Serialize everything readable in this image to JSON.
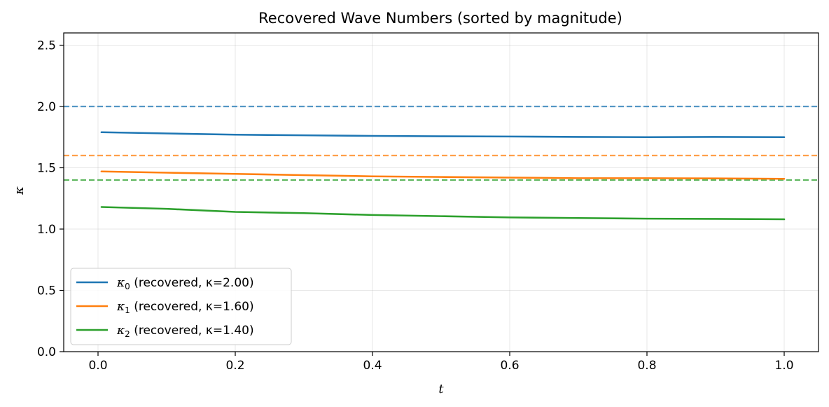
{
  "chart_data": {
    "type": "line",
    "title": "Recovered Wave Numbers (sorted by magnitude)",
    "xlabel": "t",
    "ylabel": "κ",
    "xlim": [
      -0.05,
      1.05
    ],
    "ylim": [
      0.0,
      2.6
    ],
    "xticks": [
      0.0,
      0.2,
      0.4,
      0.6,
      0.8,
      1.0
    ],
    "xtick_labels": [
      "0.0",
      "0.2",
      "0.4",
      "0.6",
      "0.8",
      "1.0"
    ],
    "yticks": [
      0.0,
      0.5,
      1.0,
      1.5,
      2.0,
      2.5
    ],
    "ytick_labels": [
      "0.0",
      "0.5",
      "1.0",
      "1.5",
      "2.0",
      "2.5"
    ],
    "grid": true,
    "legend_position": "lower-left",
    "x": [
      0.005,
      0.1,
      0.2,
      0.3,
      0.4,
      0.5,
      0.6,
      0.7,
      0.8,
      0.9,
      1.0
    ],
    "series": [
      {
        "name_symbol": "κ",
        "name_sub": "0",
        "name_rest": " (recovered, κ=2.00)",
        "color": "#1f77b4",
        "values": [
          1.79,
          1.78,
          1.77,
          1.765,
          1.76,
          1.757,
          1.755,
          1.752,
          1.75,
          1.752,
          1.75
        ]
      },
      {
        "name_symbol": "κ",
        "name_sub": "1",
        "name_rest": " (recovered, κ=1.60)",
        "color": "#ff7f0e",
        "values": [
          1.47,
          1.46,
          1.45,
          1.44,
          1.43,
          1.425,
          1.42,
          1.415,
          1.415,
          1.413,
          1.41
        ]
      },
      {
        "name_symbol": "κ",
        "name_sub": "2",
        "name_rest": " (recovered, κ=1.40)",
        "color": "#2ca02c",
        "values": [
          1.18,
          1.165,
          1.14,
          1.13,
          1.115,
          1.105,
          1.095,
          1.09,
          1.085,
          1.083,
          1.08
        ]
      }
    ],
    "reference_lines": [
      {
        "y": 2.0,
        "color": "#1f77b4",
        "style": "dashed"
      },
      {
        "y": 1.6,
        "color": "#ff7f0e",
        "style": "dashed"
      },
      {
        "y": 1.4,
        "color": "#2ca02c",
        "style": "dashed"
      }
    ]
  }
}
